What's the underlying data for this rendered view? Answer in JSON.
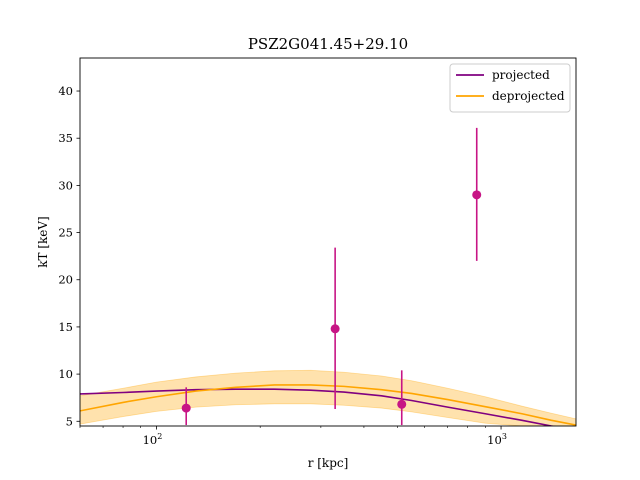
{
  "chart_data": {
    "type": "line",
    "title": "PSZ2G041.45+29.10",
    "xlabel": "r [kpc]",
    "ylabel": "kT [keV]",
    "xscale": "log",
    "xlim": [
      60,
      1650
    ],
    "ylim": [
      4.5,
      43.5
    ],
    "x_tick_labels": [
      {
        "value": 100,
        "label": "10^2"
      },
      {
        "value": 1000,
        "label": "10^3"
      }
    ],
    "y_ticks": [
      5,
      10,
      15,
      20,
      25,
      30,
      35,
      40
    ],
    "legend_position": "top-right",
    "grid": false,
    "series": [
      {
        "name": "projected",
        "kind": "line",
        "color": "#800080",
        "x": [
          60,
          80,
          100,
          130,
          170,
          220,
          280,
          350,
          450,
          550,
          700,
          900,
          1150,
          1400,
          1650
        ],
        "y": [
          7.9,
          8.05,
          8.2,
          8.35,
          8.4,
          8.4,
          8.3,
          8.1,
          7.7,
          7.2,
          6.5,
          5.8,
          5.1,
          4.5,
          4.1
        ]
      },
      {
        "name": "deprojected",
        "kind": "line_band",
        "color": "#FFA500",
        "band_color": "#FFA500",
        "x": [
          60,
          80,
          100,
          130,
          170,
          220,
          280,
          350,
          450,
          550,
          700,
          900,
          1150,
          1400,
          1650
        ],
        "y": [
          6.1,
          7.0,
          7.6,
          8.2,
          8.6,
          8.85,
          8.85,
          8.7,
          8.35,
          7.95,
          7.3,
          6.55,
          5.8,
          5.1,
          4.6
        ],
        "y_low": [
          4.7,
          5.5,
          6.05,
          6.5,
          6.75,
          6.85,
          6.85,
          6.7,
          6.4,
          6.0,
          5.4,
          4.8,
          4.5,
          4.5,
          4.5
        ],
        "y_high": [
          7.7,
          8.5,
          9.15,
          9.7,
          10.1,
          10.35,
          10.4,
          10.2,
          9.8,
          9.3,
          8.5,
          7.6,
          6.6,
          5.85,
          5.25
        ]
      },
      {
        "name": "",
        "kind": "errorbar",
        "color": "#C71585",
        "points": [
          {
            "x": 122,
            "y": 6.4,
            "ylo": 4.6,
            "yhi": 8.6
          },
          {
            "x": 330,
            "y": 14.8,
            "ylo": 6.3,
            "yhi": 23.4
          },
          {
            "x": 515,
            "y": 6.8,
            "ylo": 4.6,
            "yhi": 10.4
          },
          {
            "x": 850,
            "y": 29.0,
            "ylo": 22.0,
            "yhi": 36.1
          }
        ]
      }
    ]
  }
}
